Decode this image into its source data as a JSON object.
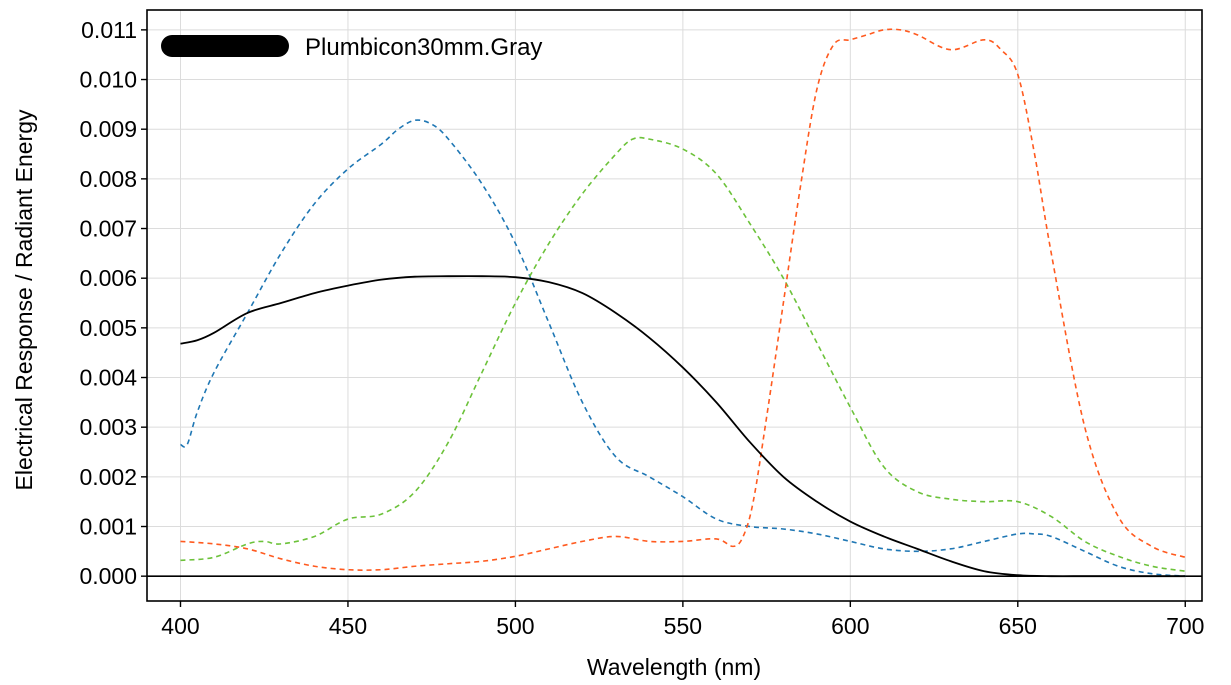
{
  "chart_data": {
    "type": "line",
    "title": "",
    "xlabel": "Wavelength (nm)",
    "ylabel": "Electrical Response / Radiant Energy",
    "xlim": [
      390,
      705
    ],
    "ylim": [
      -0.0005,
      0.0114
    ],
    "xticks": [
      400,
      450,
      500,
      550,
      600,
      650,
      700
    ],
    "xtick_labels": [
      "400",
      "450",
      "500",
      "550",
      "600",
      "650",
      "700"
    ],
    "yticks": [
      0,
      0.001,
      0.002,
      0.003,
      0.004,
      0.005,
      0.006,
      0.007,
      0.008,
      0.009,
      0.01,
      0.011
    ],
    "ytick_labels": [
      "0.000",
      "0.001",
      "0.002",
      "0.003",
      "0.004",
      "0.005",
      "0.006",
      "0.007",
      "0.008",
      "0.009",
      "0.010",
      "0.011"
    ],
    "grid": true,
    "legend_position": "top-left",
    "legend": [
      {
        "label": "Plumbicon30mm.Gray",
        "color": "#000000"
      }
    ],
    "series": [
      {
        "name": "Plumbicon30mm.Gray",
        "color": "#000000",
        "style": "solid",
        "x": [
          400,
          405,
          410,
          420,
          430,
          440,
          450,
          460,
          470,
          480,
          490,
          500,
          510,
          520,
          530,
          540,
          550,
          560,
          570,
          580,
          590,
          600,
          610,
          620,
          630,
          640,
          650,
          660,
          670,
          680,
          690,
          700
        ],
        "y": [
          0.00468,
          0.00475,
          0.0049,
          0.0053,
          0.0055,
          0.0057,
          0.00585,
          0.00597,
          0.00603,
          0.00604,
          0.00604,
          0.00602,
          0.00592,
          0.0057,
          0.0053,
          0.0048,
          0.0042,
          0.0035,
          0.0027,
          0.002,
          0.0015,
          0.0011,
          0.0008,
          0.00055,
          0.0003,
          0.0001,
          2e-05,
          0.0,
          0.0,
          0.0,
          0.0,
          0.0
        ]
      },
      {
        "name": "",
        "color": "#1f77b4",
        "style": "dashed",
        "x": [
          400,
          402,
          405,
          410,
          420,
          430,
          440,
          450,
          460,
          465,
          470,
          475,
          480,
          490,
          500,
          510,
          520,
          530,
          540,
          550,
          560,
          570,
          580,
          590,
          600,
          610,
          620,
          630,
          640,
          650,
          655,
          660,
          670,
          680,
          690,
          700
        ],
        "y": [
          0.00265,
          0.00265,
          0.0033,
          0.0041,
          0.0053,
          0.0065,
          0.0075,
          0.0082,
          0.0087,
          0.009,
          0.00918,
          0.0091,
          0.0088,
          0.0079,
          0.0067,
          0.0051,
          0.0035,
          0.0024,
          0.002,
          0.0016,
          0.00115,
          0.001,
          0.00095,
          0.00085,
          0.0007,
          0.00055,
          0.0005,
          0.00055,
          0.0007,
          0.00085,
          0.00085,
          0.0008,
          0.0005,
          0.0002,
          5e-05,
          0.0
        ]
      },
      {
        "name": "",
        "color": "#6cc23a",
        "style": "dashed",
        "x": [
          400,
          410,
          420,
          425,
          430,
          440,
          450,
          460,
          470,
          480,
          490,
          500,
          510,
          520,
          530,
          535,
          540,
          550,
          560,
          570,
          580,
          590,
          600,
          610,
          620,
          630,
          640,
          650,
          660,
          670,
          680,
          690,
          700
        ],
        "y": [
          0.00032,
          0.00038,
          0.00065,
          0.0007,
          0.00065,
          0.0008,
          0.00115,
          0.00125,
          0.0017,
          0.0027,
          0.0041,
          0.0055,
          0.0067,
          0.0077,
          0.0085,
          0.0088,
          0.0088,
          0.0086,
          0.0081,
          0.0071,
          0.006,
          0.0047,
          0.0034,
          0.0022,
          0.0017,
          0.00155,
          0.0015,
          0.0015,
          0.0012,
          0.0007,
          0.0004,
          0.0002,
          0.0001
        ]
      },
      {
        "name": "",
        "color": "#ff5a1f",
        "style": "dashed",
        "x": [
          400,
          410,
          420,
          430,
          440,
          450,
          460,
          470,
          480,
          490,
          500,
          510,
          520,
          530,
          540,
          550,
          560,
          565,
          568,
          571,
          575,
          580,
          585,
          590,
          595,
          600,
          605,
          610,
          615,
          620,
          630,
          640,
          645,
          650,
          655,
          660,
          670,
          680,
          690,
          700
        ],
        "y": [
          0.0007,
          0.00065,
          0.00055,
          0.00035,
          0.0002,
          0.00013,
          0.00013,
          0.0002,
          0.00025,
          0.0003,
          0.0004,
          0.00055,
          0.0007,
          0.0008,
          0.0007,
          0.0007,
          0.00075,
          0.0006,
          0.0008,
          0.0015,
          0.0032,
          0.0055,
          0.0078,
          0.0098,
          0.0107,
          0.0108,
          0.0109,
          0.011,
          0.011,
          0.0109,
          0.0106,
          0.0108,
          0.0106,
          0.0101,
          0.0085,
          0.0065,
          0.003,
          0.0012,
          0.0006,
          0.00038
        ]
      }
    ]
  }
}
